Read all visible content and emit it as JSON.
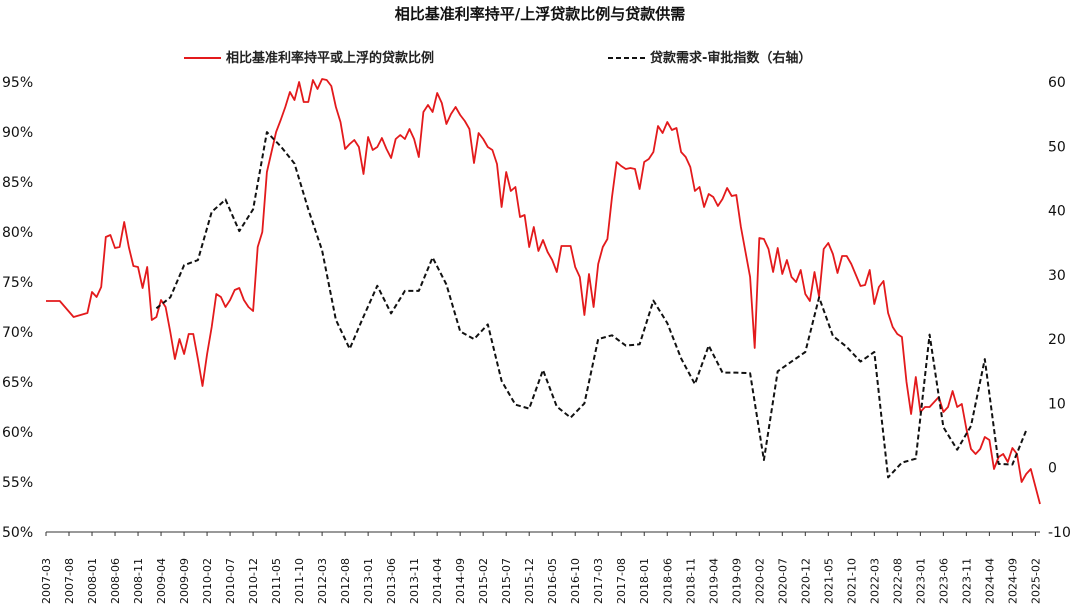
{
  "chart_data": {
    "type": "line",
    "title": "相比基准利率持平/上浮贷款比例与贷款供需",
    "legend_position": "top",
    "y_left": {
      "min": 50,
      "max": 95,
      "ticks": [
        "50%",
        "55%",
        "60%",
        "65%",
        "70%",
        "75%",
        "80%",
        "85%",
        "90%",
        "95%"
      ]
    },
    "y_right": {
      "min": -10,
      "max": 60,
      "ticks": [
        "-10",
        "0",
        "10",
        "20",
        "30",
        "40",
        "50",
        "60"
      ]
    },
    "x_start": "2007-03",
    "x_end": "2025-03",
    "x_ticks": [
      "2007-03",
      "2007-08",
      "2008-01",
      "2008-06",
      "2008-11",
      "2009-04",
      "2009-09",
      "2010-02",
      "2010-07",
      "2010-12",
      "2011-05",
      "2011-10",
      "2012-03",
      "2012-08",
      "2013-01",
      "2013-06",
      "2013-11",
      "2014-04",
      "2014-09",
      "2015-02",
      "2015-07",
      "2015-12",
      "2016-05",
      "2016-10",
      "2017-03",
      "2017-08",
      "2018-01",
      "2018-06",
      "2018-11",
      "2019-04",
      "2019-09",
      "2020-02",
      "2020-07",
      "2020-12",
      "2021-05",
      "2021-10",
      "2022-03",
      "2022-08",
      "2023-01",
      "2023-06",
      "2023-11",
      "2024-04",
      "2024-09",
      "2025-02"
    ],
    "series": [
      {
        "name": "相比基准利率持平或上浮的贷款比例",
        "axis": "left",
        "color": "#e31a1c",
        "style": "solid",
        "points": [
          [
            "2007-03",
            73.1
          ],
          [
            "2007-06",
            73.1
          ],
          [
            "2007-09",
            71.5
          ],
          [
            "2007-12",
            71.9
          ],
          [
            "2008-01",
            74.0
          ],
          [
            "2008-02",
            73.5
          ],
          [
            "2008-03",
            74.5
          ],
          [
            "2008-04",
            79.5
          ],
          [
            "2008-05",
            79.7
          ],
          [
            "2008-06",
            78.4
          ],
          [
            "2008-07",
            78.5
          ],
          [
            "2008-08",
            81.0
          ],
          [
            "2008-09",
            78.5
          ],
          [
            "2008-10",
            76.6
          ],
          [
            "2008-11",
            76.5
          ],
          [
            "2008-12",
            74.4
          ],
          [
            "2009-01",
            76.5
          ],
          [
            "2009-02",
            71.2
          ],
          [
            "2009-03",
            71.5
          ],
          [
            "2009-04",
            73.2
          ],
          [
            "2009-05",
            72.5
          ],
          [
            "2009-06",
            70.0
          ],
          [
            "2009-07",
            67.3
          ],
          [
            "2009-08",
            69.3
          ],
          [
            "2009-09",
            67.8
          ],
          [
            "2009-10",
            69.8
          ],
          [
            "2009-11",
            69.8
          ],
          [
            "2009-12",
            67.3
          ],
          [
            "2010-01",
            64.6
          ],
          [
            "2010-02",
            67.8
          ],
          [
            "2010-03",
            70.5
          ],
          [
            "2010-04",
            73.8
          ],
          [
            "2010-05",
            73.5
          ],
          [
            "2010-06",
            72.5
          ],
          [
            "2010-07",
            73.2
          ],
          [
            "2010-08",
            74.2
          ],
          [
            "2010-09",
            74.4
          ],
          [
            "2010-10",
            73.2
          ],
          [
            "2010-11",
            72.5
          ],
          [
            "2010-12",
            72.1
          ],
          [
            "2011-01",
            78.5
          ],
          [
            "2011-02",
            80.0
          ],
          [
            "2011-03",
            86.0
          ],
          [
            "2011-04",
            88.0
          ],
          [
            "2011-05",
            90.0
          ],
          [
            "2011-06",
            91.2
          ],
          [
            "2011-07",
            92.5
          ],
          [
            "2011-08",
            94.0
          ],
          [
            "2011-09",
            93.2
          ],
          [
            "2011-10",
            95.0
          ],
          [
            "2011-11",
            93.0
          ],
          [
            "2011-12",
            93.0
          ],
          [
            "2012-01",
            95.2
          ],
          [
            "2012-02",
            94.3
          ],
          [
            "2012-03",
            95.3
          ],
          [
            "2012-04",
            95.2
          ],
          [
            "2012-05",
            94.6
          ],
          [
            "2012-06",
            92.5
          ],
          [
            "2012-07",
            91.0
          ],
          [
            "2012-08",
            88.3
          ],
          [
            "2012-09",
            88.8
          ],
          [
            "2012-10",
            89.2
          ],
          [
            "2012-11",
            88.5
          ],
          [
            "2012-12",
            85.8
          ],
          [
            "2013-01",
            89.5
          ],
          [
            "2013-02",
            88.2
          ],
          [
            "2013-03",
            88.5
          ],
          [
            "2013-04",
            89.4
          ],
          [
            "2013-05",
            88.3
          ],
          [
            "2013-06",
            87.4
          ],
          [
            "2013-07",
            89.3
          ],
          [
            "2013-08",
            89.7
          ],
          [
            "2013-09",
            89.3
          ],
          [
            "2013-10",
            90.3
          ],
          [
            "2013-11",
            89.3
          ],
          [
            "2013-12",
            87.5
          ],
          [
            "2014-01",
            92.0
          ],
          [
            "2014-02",
            92.7
          ],
          [
            "2014-03",
            92.0
          ],
          [
            "2014-04",
            93.9
          ],
          [
            "2014-05",
            92.9
          ],
          [
            "2014-06",
            90.8
          ],
          [
            "2014-07",
            91.8
          ],
          [
            "2014-08",
            92.5
          ],
          [
            "2014-09",
            91.7
          ],
          [
            "2014-10",
            91.1
          ],
          [
            "2014-11",
            90.3
          ],
          [
            "2014-12",
            86.9
          ],
          [
            "2015-01",
            89.9
          ],
          [
            "2015-02",
            89.3
          ],
          [
            "2015-03",
            88.5
          ],
          [
            "2015-04",
            88.2
          ],
          [
            "2015-05",
            86.8
          ],
          [
            "2015-06",
            82.5
          ],
          [
            "2015-07",
            86.0
          ],
          [
            "2015-08",
            84.1
          ],
          [
            "2015-09",
            84.5
          ],
          [
            "2015-10",
            81.5
          ],
          [
            "2015-11",
            81.7
          ],
          [
            "2015-12",
            78.5
          ],
          [
            "2016-01",
            80.5
          ],
          [
            "2016-02",
            78.1
          ],
          [
            "2016-03",
            79.2
          ],
          [
            "2016-04",
            78.0
          ],
          [
            "2016-05",
            77.2
          ],
          [
            "2016-06",
            76.0
          ],
          [
            "2016-07",
            78.6
          ],
          [
            "2016-08",
            78.6
          ],
          [
            "2016-09",
            78.6
          ],
          [
            "2016-10",
            76.5
          ],
          [
            "2016-11",
            75.5
          ],
          [
            "2016-12",
            71.7
          ],
          [
            "2017-01",
            75.8
          ],
          [
            "2017-02",
            72.5
          ],
          [
            "2017-03",
            76.8
          ],
          [
            "2017-04",
            78.5
          ],
          [
            "2017-05",
            79.3
          ],
          [
            "2017-06",
            83.5
          ],
          [
            "2017-07",
            87.0
          ],
          [
            "2017-08",
            86.6
          ],
          [
            "2017-09",
            86.3
          ],
          [
            "2017-10",
            86.4
          ],
          [
            "2017-11",
            86.3
          ],
          [
            "2017-12",
            84.3
          ],
          [
            "2018-01",
            87.0
          ],
          [
            "2018-02",
            87.3
          ],
          [
            "2018-03",
            88.0
          ],
          [
            "2018-04",
            90.6
          ],
          [
            "2018-05",
            89.9
          ],
          [
            "2018-06",
            91.0
          ],
          [
            "2018-07",
            90.2
          ],
          [
            "2018-08",
            90.4
          ],
          [
            "2018-09",
            88.0
          ],
          [
            "2018-10",
            87.5
          ],
          [
            "2018-11",
            86.5
          ],
          [
            "2018-12",
            84.1
          ],
          [
            "2019-01",
            84.5
          ],
          [
            "2019-02",
            82.5
          ],
          [
            "2019-03",
            83.8
          ],
          [
            "2019-04",
            83.5
          ],
          [
            "2019-05",
            82.6
          ],
          [
            "2019-06",
            83.3
          ],
          [
            "2019-07",
            84.4
          ],
          [
            "2019-08",
            83.6
          ],
          [
            "2019-09",
            83.7
          ],
          [
            "2019-10",
            80.5
          ],
          [
            "2019-11",
            78.0
          ],
          [
            "2019-12",
            75.5
          ],
          [
            "2020-01",
            68.4
          ],
          [
            "2020-02",
            79.4
          ],
          [
            "2020-03",
            79.3
          ],
          [
            "2020-04",
            78.3
          ],
          [
            "2020-05",
            76.0
          ],
          [
            "2020-06",
            78.4
          ],
          [
            "2020-07",
            75.8
          ],
          [
            "2020-08",
            77.2
          ],
          [
            "2020-09",
            75.5
          ],
          [
            "2020-10",
            75.0
          ],
          [
            "2020-11",
            76.2
          ],
          [
            "2020-12",
            73.8
          ],
          [
            "2021-01",
            73.1
          ],
          [
            "2021-02",
            76.0
          ],
          [
            "2021-03",
            73.5
          ],
          [
            "2021-04",
            78.3
          ],
          [
            "2021-05",
            78.9
          ],
          [
            "2021-06",
            77.8
          ],
          [
            "2021-07",
            75.9
          ],
          [
            "2021-08",
            77.6
          ],
          [
            "2021-09",
            77.6
          ],
          [
            "2021-10",
            76.8
          ],
          [
            "2021-11",
            75.7
          ],
          [
            "2021-12",
            74.6
          ],
          [
            "2022-01",
            74.7
          ],
          [
            "2022-02",
            76.2
          ],
          [
            "2022-03",
            72.8
          ],
          [
            "2022-04",
            74.5
          ],
          [
            "2022-05",
            75.1
          ],
          [
            "2022-06",
            71.9
          ],
          [
            "2022-07",
            70.5
          ],
          [
            "2022-08",
            69.8
          ],
          [
            "2022-09",
            69.5
          ],
          [
            "2022-10",
            65.0
          ],
          [
            "2022-11",
            61.8
          ],
          [
            "2022-12",
            65.5
          ],
          [
            "2023-01",
            62.0
          ],
          [
            "2023-02",
            62.5
          ],
          [
            "2023-03",
            62.5
          ],
          [
            "2023-04",
            63.0
          ],
          [
            "2023-05",
            63.5
          ],
          [
            "2023-06",
            62.0
          ],
          [
            "2023-07",
            62.5
          ],
          [
            "2023-08",
            64.1
          ],
          [
            "2023-09",
            62.5
          ],
          [
            "2023-10",
            62.8
          ],
          [
            "2023-11",
            60.3
          ],
          [
            "2023-12",
            58.3
          ],
          [
            "2024-01",
            57.8
          ],
          [
            "2024-02",
            58.3
          ],
          [
            "2024-03",
            59.5
          ],
          [
            "2024-04",
            59.2
          ],
          [
            "2024-05",
            56.3
          ],
          [
            "2024-06",
            57.5
          ],
          [
            "2024-07",
            57.8
          ],
          [
            "2024-08",
            57.0
          ],
          [
            "2024-09",
            58.4
          ],
          [
            "2024-10",
            57.8
          ],
          [
            "2024-11",
            55.0
          ],
          [
            "2024-12",
            55.8
          ],
          [
            "2025-01",
            56.3
          ],
          [
            "2025-03",
            52.8
          ]
        ]
      },
      {
        "name": "贷款需求-审批指数（右轴）",
        "axis": "right",
        "color": "#111111",
        "style": "dashed",
        "points": [
          [
            "2009-03",
            24.8
          ],
          [
            "2009-06",
            26.5
          ],
          [
            "2009-09",
            31.5
          ],
          [
            "2009-12",
            32.3
          ],
          [
            "2010-03",
            39.8
          ],
          [
            "2010-06",
            41.7
          ],
          [
            "2010-09",
            36.8
          ],
          [
            "2010-12",
            40.2
          ],
          [
            "2011-03",
            52.2
          ],
          [
            "2011-06",
            50.0
          ],
          [
            "2011-09",
            47.3
          ],
          [
            "2011-12",
            40.2
          ],
          [
            "2012-03",
            33.8
          ],
          [
            "2012-06",
            23.0
          ],
          [
            "2012-09",
            18.5
          ],
          [
            "2012-12",
            23.5
          ],
          [
            "2013-03",
            28.3
          ],
          [
            "2013-06",
            24.0
          ],
          [
            "2013-09",
            27.5
          ],
          [
            "2013-12",
            27.5
          ],
          [
            "2014-03",
            32.7
          ],
          [
            "2014-06",
            28.5
          ],
          [
            "2014-09",
            21.2
          ],
          [
            "2014-12",
            20.0
          ],
          [
            "2015-03",
            22.3
          ],
          [
            "2015-06",
            13.5
          ],
          [
            "2015-09",
            9.8
          ],
          [
            "2015-12",
            9.2
          ],
          [
            "2016-03",
            15.2
          ],
          [
            "2016-06",
            9.5
          ],
          [
            "2016-09",
            7.8
          ],
          [
            "2016-12",
            10.0
          ],
          [
            "2017-03",
            20.0
          ],
          [
            "2017-06",
            20.6
          ],
          [
            "2017-09",
            19.0
          ],
          [
            "2017-12",
            19.2
          ],
          [
            "2018-03",
            26.0
          ],
          [
            "2018-06",
            22.5
          ],
          [
            "2018-09",
            17.0
          ],
          [
            "2018-12",
            13.0
          ],
          [
            "2019-03",
            19.0
          ],
          [
            "2019-06",
            14.8
          ],
          [
            "2019-09",
            14.8
          ],
          [
            "2019-12",
            14.7
          ],
          [
            "2020-03",
            1.2
          ],
          [
            "2020-06",
            15.0
          ],
          [
            "2020-09",
            16.5
          ],
          [
            "2020-12",
            18.0
          ],
          [
            "2021-03",
            26.5
          ],
          [
            "2021-06",
            20.5
          ],
          [
            "2021-09",
            18.8
          ],
          [
            "2021-12",
            16.5
          ],
          [
            "2022-03",
            18.0
          ],
          [
            "2022-06",
            -1.5
          ],
          [
            "2022-09",
            0.8
          ],
          [
            "2022-12",
            1.4
          ],
          [
            "2023-03",
            20.7
          ],
          [
            "2023-06",
            6.3
          ],
          [
            "2023-09",
            2.8
          ],
          [
            "2023-12",
            6.5
          ],
          [
            "2024-03",
            16.9
          ],
          [
            "2024-06",
            0.6
          ],
          [
            "2024-09",
            0.5
          ],
          [
            "2024-12",
            5.8
          ]
        ]
      }
    ]
  }
}
